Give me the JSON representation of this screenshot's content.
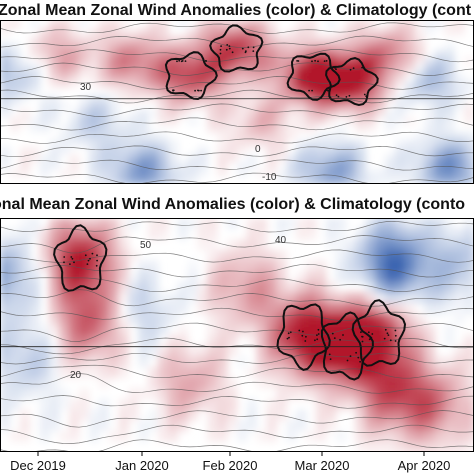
{
  "chart_data": [
    {
      "type": "heatmap",
      "title": "Zonal Mean Zonal Wind Anomalies (color) & Climatology (cont",
      "x_tick_labels": [],
      "contour_labels": [
        "30",
        "0",
        "-10"
      ],
      "colormap": {
        "negative": "#3a64b0",
        "neutral": "#ffffff",
        "positive": "#b2182b"
      },
      "blobs": [
        {
          "x": 0.02,
          "y": 0.32,
          "sign": -1,
          "strength": 0.45
        },
        {
          "x": 0.12,
          "y": 0.22,
          "sign": 1,
          "strength": 0.4
        },
        {
          "x": 0.28,
          "y": 0.25,
          "sign": 1,
          "strength": 0.55
        },
        {
          "x": 0.4,
          "y": 0.34,
          "sign": 1,
          "strength": 0.8
        },
        {
          "x": 0.5,
          "y": 0.18,
          "sign": 1,
          "strength": 0.85
        },
        {
          "x": 0.66,
          "y": 0.34,
          "sign": 1,
          "strength": 1.0
        },
        {
          "x": 0.74,
          "y": 0.38,
          "sign": 1,
          "strength": 0.9
        },
        {
          "x": 0.82,
          "y": 0.22,
          "sign": 1,
          "strength": 0.6
        },
        {
          "x": 0.9,
          "y": 0.36,
          "sign": -1,
          "strength": 0.45
        },
        {
          "x": 0.2,
          "y": 0.62,
          "sign": -1,
          "strength": 0.3
        },
        {
          "x": 0.55,
          "y": 0.62,
          "sign": 1,
          "strength": 0.3
        },
        {
          "x": 0.3,
          "y": 0.92,
          "sign": -1,
          "strength": 0.65
        },
        {
          "x": 0.7,
          "y": 0.92,
          "sign": -1,
          "strength": 0.6
        },
        {
          "x": 0.95,
          "y": 0.9,
          "sign": -1,
          "strength": 0.7
        }
      ]
    },
    {
      "type": "heatmap",
      "title": "onal Mean Zonal Wind Anomalies (color) & Climatology (conto",
      "x_tick_labels": [
        "Dec 2019",
        "Jan 2020",
        "Feb 2020",
        "Mar 2020",
        "Apr 2020"
      ],
      "contour_labels": [
        "50",
        "40",
        "20"
      ],
      "colormap": {
        "negative": "#3a64b0",
        "neutral": "#ffffff",
        "positive": "#b2182b"
      },
      "blobs": [
        {
          "x": 0.01,
          "y": 0.25,
          "sign": -1,
          "strength": 0.55
        },
        {
          "x": 0.05,
          "y": 0.6,
          "sign": -1,
          "strength": 0.35
        },
        {
          "x": 0.17,
          "y": 0.18,
          "sign": 1,
          "strength": 1.0
        },
        {
          "x": 0.19,
          "y": 0.45,
          "sign": 1,
          "strength": 0.7
        },
        {
          "x": 0.3,
          "y": 0.4,
          "sign": -1,
          "strength": 0.3
        },
        {
          "x": 0.4,
          "y": 0.7,
          "sign": 1,
          "strength": 0.4
        },
        {
          "x": 0.52,
          "y": 0.3,
          "sign": 1,
          "strength": 0.45
        },
        {
          "x": 0.64,
          "y": 0.5,
          "sign": 1,
          "strength": 1.0
        },
        {
          "x": 0.73,
          "y": 0.55,
          "sign": 1,
          "strength": 0.95
        },
        {
          "x": 0.8,
          "y": 0.5,
          "sign": 1,
          "strength": 0.85
        },
        {
          "x": 0.83,
          "y": 0.75,
          "sign": 1,
          "strength": 0.7
        },
        {
          "x": 0.83,
          "y": 0.2,
          "sign": -1,
          "strength": 1.0
        },
        {
          "x": 0.92,
          "y": 0.8,
          "sign": 1,
          "strength": 0.55
        },
        {
          "x": 0.97,
          "y": 0.2,
          "sign": -1,
          "strength": 0.4
        }
      ]
    }
  ]
}
